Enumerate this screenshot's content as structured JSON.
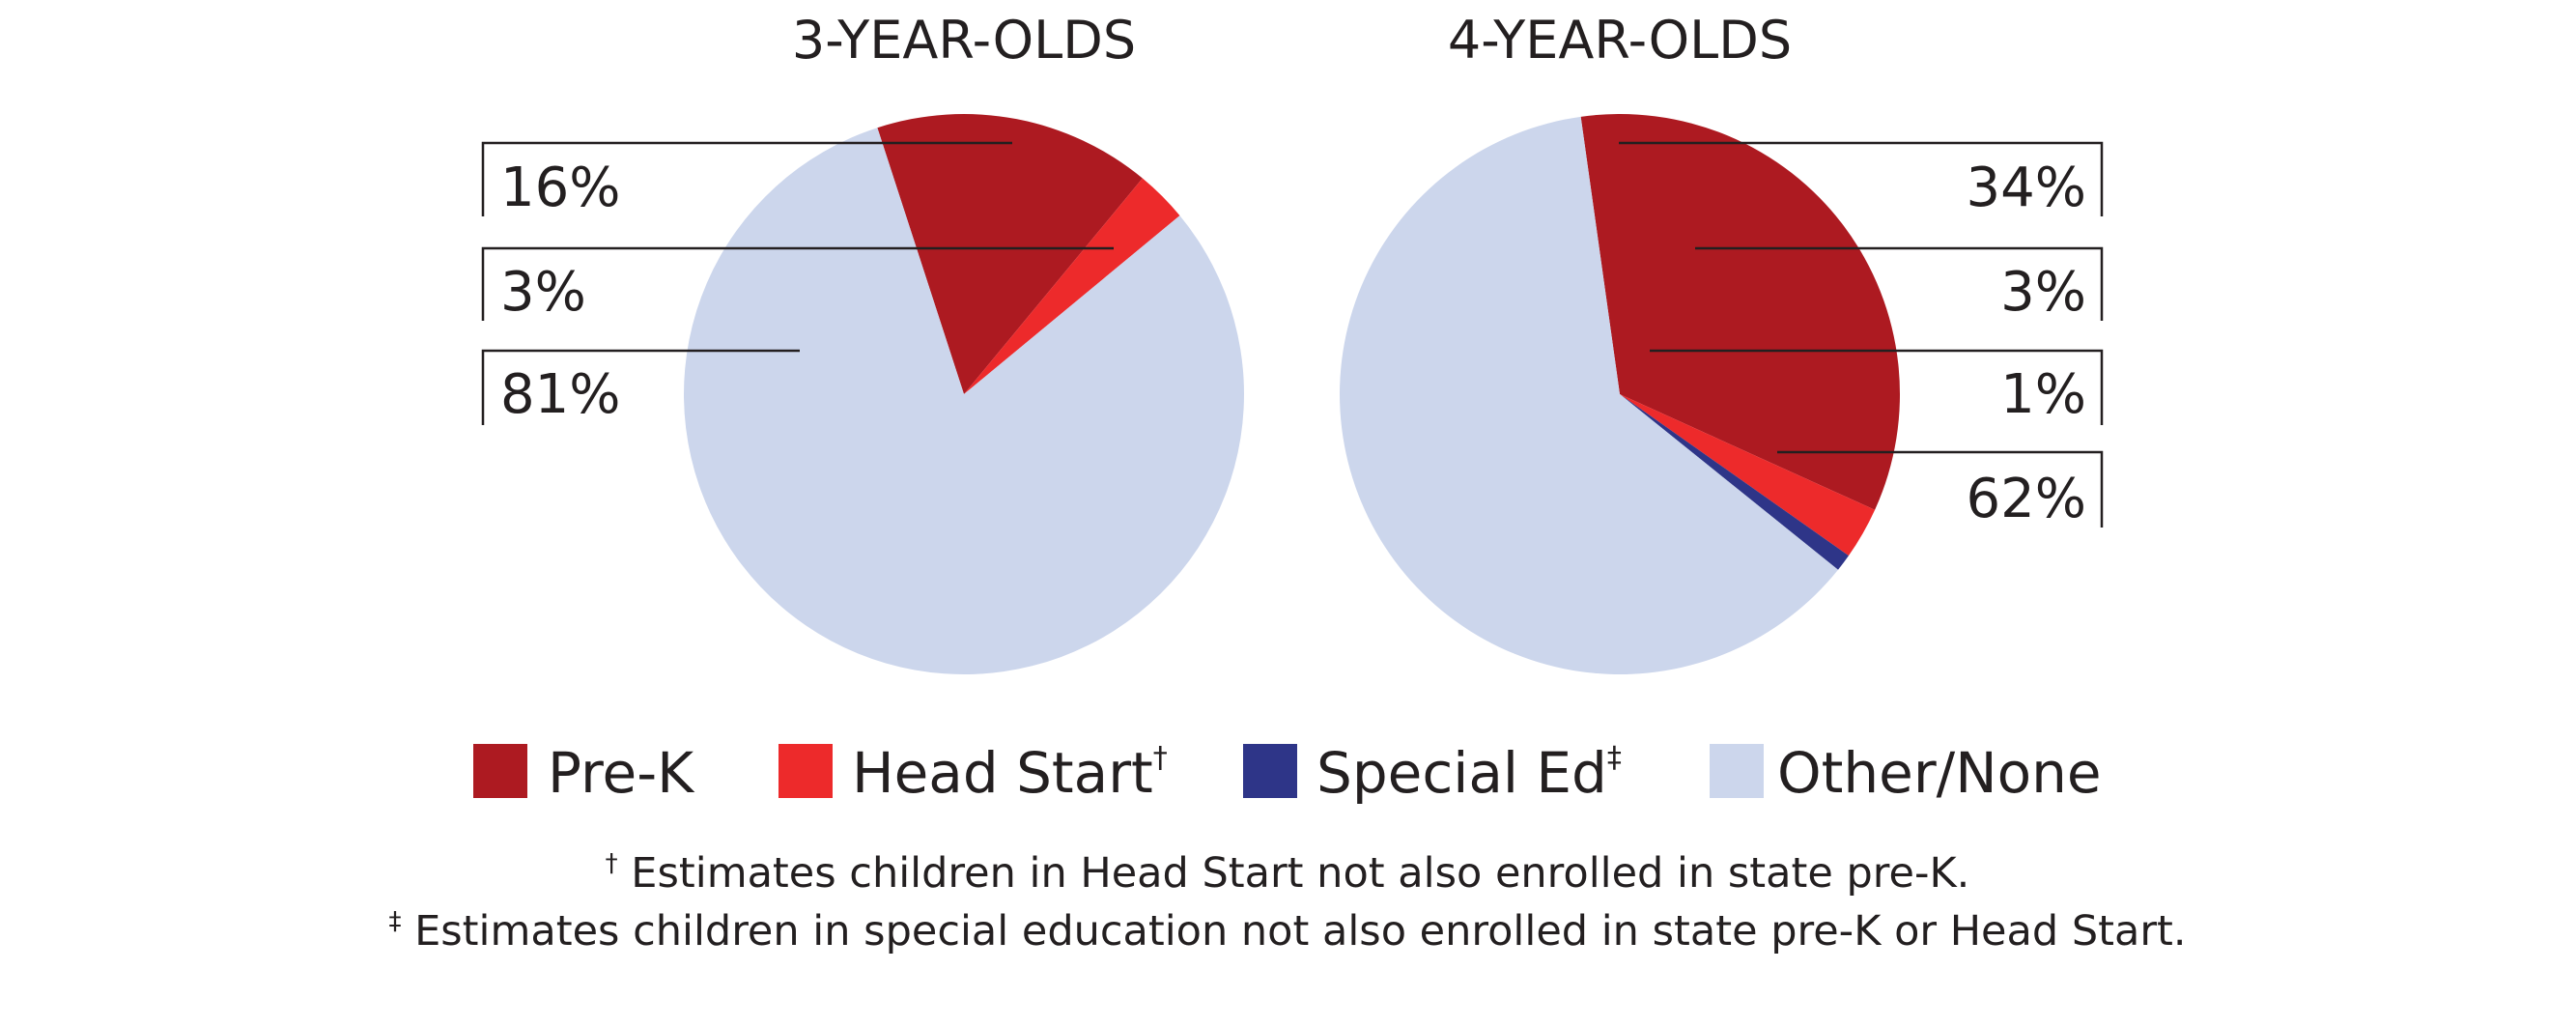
{
  "chart_data": [
    {
      "type": "pie",
      "title": "3-YEAR-OLDS",
      "categories": [
        "Pre-K",
        "Head Start",
        "Special Ed",
        "Other/None"
      ],
      "values": [
        16,
        3,
        0,
        81
      ],
      "labels": [
        "16%",
        "3%",
        "",
        "81%"
      ]
    },
    {
      "type": "pie",
      "title": "4-YEAR-OLDS",
      "categories": [
        "Pre-K",
        "Head Start",
        "Special Ed",
        "Other/None"
      ],
      "values": [
        34,
        3,
        1,
        62
      ],
      "labels": [
        "34%",
        "3%",
        "1%",
        "62%"
      ]
    }
  ],
  "legend": {
    "placement": "bottom",
    "items": [
      {
        "label": "Pre-K",
        "mark": "",
        "color": "#ad1a21"
      },
      {
        "label": "Head Start",
        "mark": "†",
        "color": "#ed2a2b"
      },
      {
        "label": "Special Ed",
        "mark": "‡",
        "color": "#2e3588"
      },
      {
        "label": "Other/None",
        "mark": "",
        "color": "#ccd6ec"
      }
    ]
  },
  "footnotes": [
    {
      "mark": "†",
      "text": " Estimates children in Head Start not also enrolled in state pre-K."
    },
    {
      "mark": "‡",
      "text": " Estimates children in special education not also enrolled in state pre-K or Head Start."
    }
  ]
}
